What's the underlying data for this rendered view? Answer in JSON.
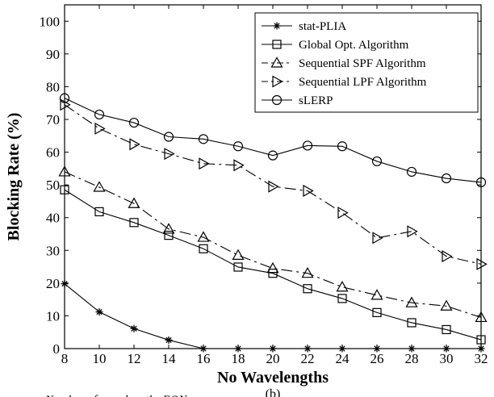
{
  "chart_data": {
    "type": "line",
    "xlabel": "No Wavelengths",
    "ylabel": "Blocking Rate (%)",
    "xlim": [
      8,
      32
    ],
    "ylim": [
      0,
      105
    ],
    "xticks": [
      8,
      10,
      12,
      14,
      16,
      18,
      20,
      22,
      24,
      26,
      28,
      30,
      32
    ],
    "yticks": [
      0,
      10,
      20,
      30,
      40,
      50,
      60,
      70,
      80,
      90,
      100
    ],
    "grid": false,
    "legend_position": "top-right",
    "x": [
      8,
      10,
      12,
      14,
      16,
      18,
      20,
      22,
      24,
      26,
      28,
      30,
      32
    ],
    "series": [
      {
        "name": "stat-PLIA",
        "marker": "star",
        "dash": "solid",
        "values": [
          19.8,
          11.2,
          6.1,
          2.6,
          0,
          0,
          0,
          0,
          0,
          0,
          0,
          0,
          0
        ]
      },
      {
        "name": "Global Opt. Algorithm",
        "marker": "square",
        "dash": "solid",
        "values": [
          48.5,
          41.8,
          38.5,
          34.6,
          30.5,
          24.9,
          23.0,
          18.3,
          15.3,
          11.0,
          7.9,
          5.8,
          2.7
        ]
      },
      {
        "name": "Sequential SPF Algorithm",
        "marker": "triangle-up",
        "dash": "dashdot",
        "values": [
          54.0,
          49.3,
          44.3,
          36.5,
          34.0,
          28.5,
          24.5,
          23.0,
          18.8,
          16.3,
          14.0,
          13.0,
          9.5
        ]
      },
      {
        "name": "Sequential LPF Algorithm",
        "marker": "triangle-right",
        "dash": "dashdot",
        "values": [
          74.5,
          67.2,
          62.4,
          59.5,
          56.5,
          56.0,
          49.5,
          48.2,
          41.5,
          33.8,
          35.8,
          28.2,
          25.8
        ]
      },
      {
        "name": "sLERP",
        "marker": "circle",
        "dash": "solid",
        "values": [
          76.5,
          71.5,
          69.0,
          64.7,
          64.0,
          61.8,
          59.0,
          62.0,
          61.8,
          57.2,
          54.0,
          52.0,
          50.8
        ]
      }
    ]
  },
  "caption": "(b)",
  "cutoff_text": "Number of wavelengths EON",
  "colors": {
    "ink": "#000000",
    "background": "#ffffff"
  }
}
